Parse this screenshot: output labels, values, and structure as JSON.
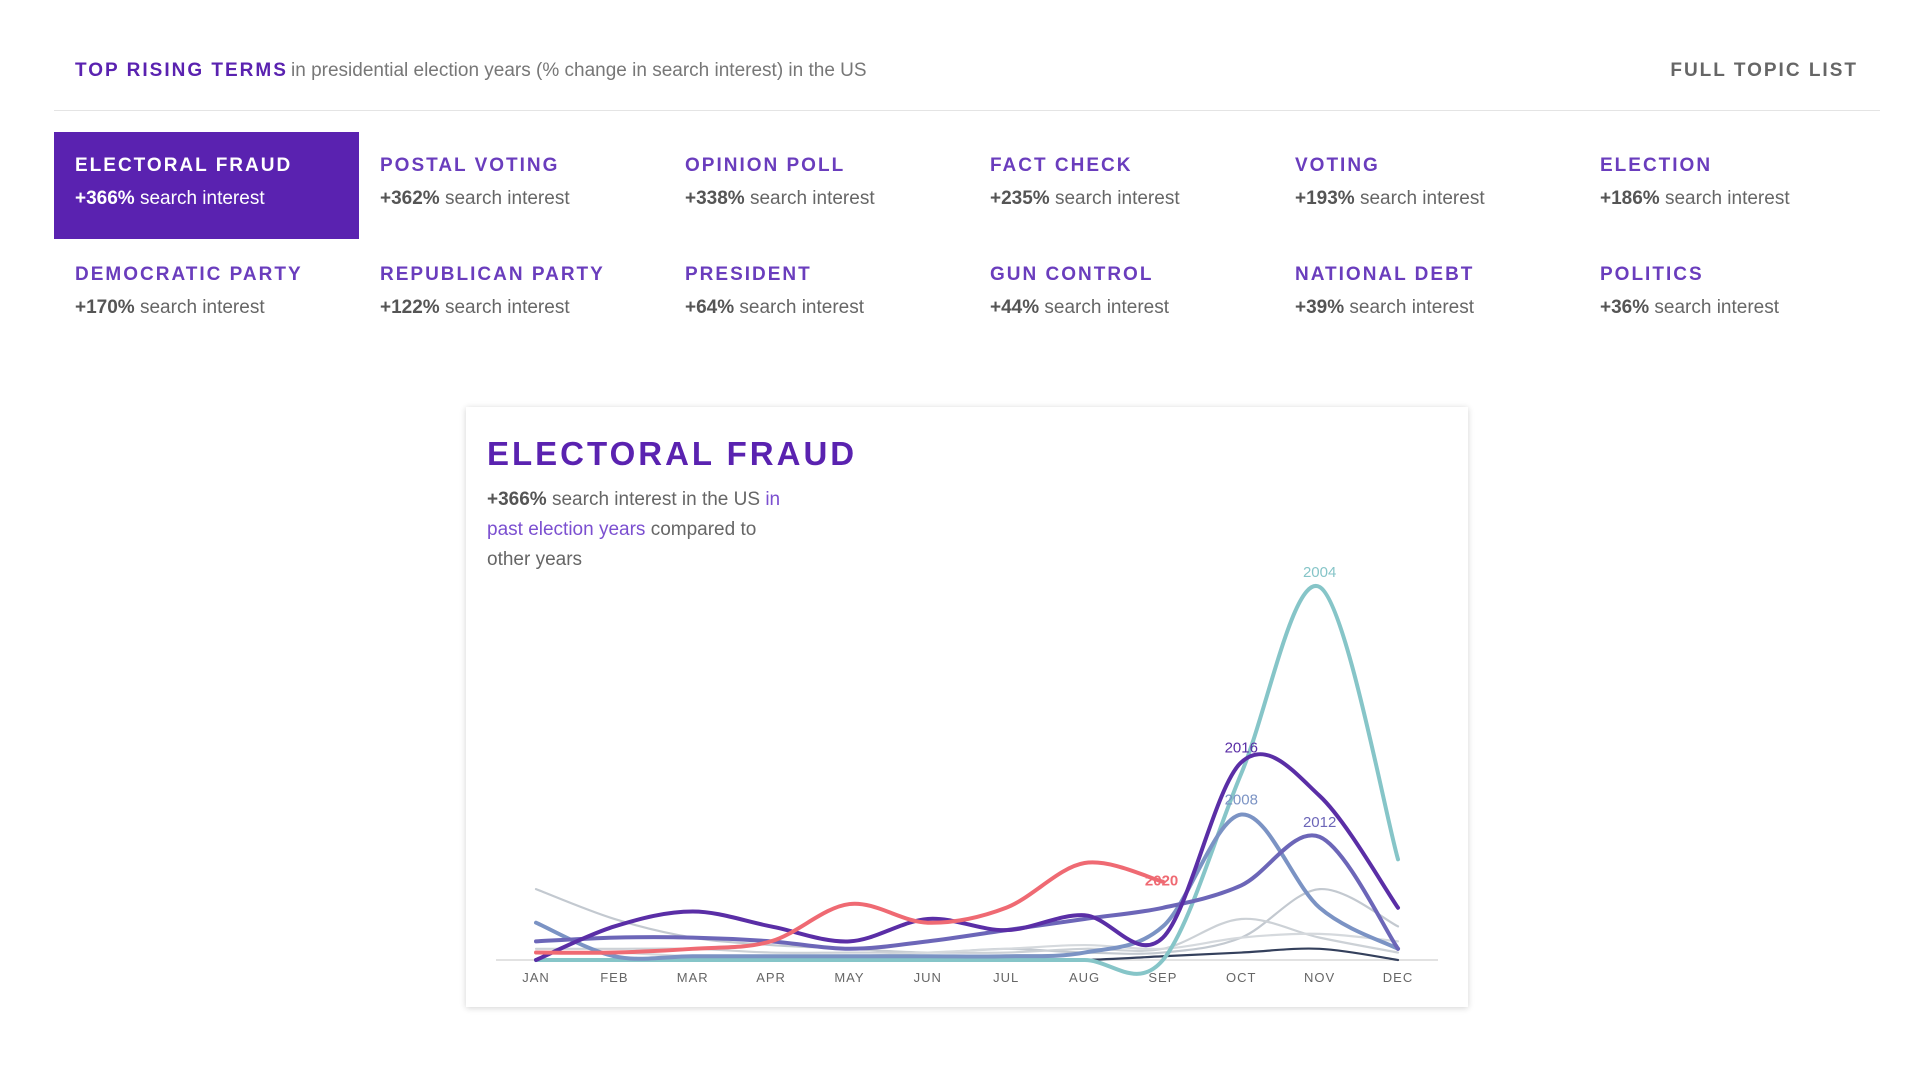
{
  "header": {
    "title": "TOP RISING TERMS",
    "subtitle": "in presidential election years (% change in search interest) in the US",
    "link": "FULL TOPIC LIST"
  },
  "topics": [
    {
      "name": "ELECTORAL FRAUD",
      "change": "+366%",
      "suffix": "search interest",
      "active": true
    },
    {
      "name": "POSTAL VOTING",
      "change": "+362%",
      "suffix": "search interest"
    },
    {
      "name": "OPINION POLL",
      "change": "+338%",
      "suffix": "search interest"
    },
    {
      "name": "FACT CHECK",
      "change": "+235%",
      "suffix": "search interest"
    },
    {
      "name": "VOTING",
      "change": "+193%",
      "suffix": "search interest"
    },
    {
      "name": "ELECTION",
      "change": "+186%",
      "suffix": "search interest"
    },
    {
      "name": "DEMOCRATIC PARTY",
      "change": "+170%",
      "suffix": "search interest"
    },
    {
      "name": "REPUBLICAN PARTY",
      "change": "+122%",
      "suffix": "search interest"
    },
    {
      "name": "PRESIDENT",
      "change": "+64%",
      "suffix": "search interest"
    },
    {
      "name": "GUN CONTROL",
      "change": "+44%",
      "suffix": "search interest"
    },
    {
      "name": "NATIONAL DEBT",
      "change": "+39%",
      "suffix": "search interest"
    },
    {
      "name": "POLITICS",
      "change": "+36%",
      "suffix": "search interest"
    }
  ],
  "chart_data": {
    "type": "line",
    "title": "ELECTORAL FRAUD",
    "subtitle": {
      "change": "+366%",
      "text": "search interest in the US",
      "link": "in past election years",
      "rest": "compared to other years"
    },
    "categories": [
      "JAN",
      "FEB",
      "MAR",
      "APR",
      "MAY",
      "JUN",
      "JUL",
      "AUG",
      "SEP",
      "OCT",
      "NOV",
      "DEC"
    ],
    "ylim": [
      0,
      100
    ],
    "series": [
      {
        "color": "#c3c9d0",
        "values": [
          19,
          11,
          6,
          4,
          3,
          2,
          3,
          2,
          2,
          6,
          19,
          9
        ]
      },
      {
        "color": "#ccd1d6",
        "values": [
          3,
          3,
          3,
          2,
          2,
          2,
          2,
          3,
          3,
          11,
          6,
          2
        ]
      },
      {
        "color": "#d5d9dd",
        "values": [
          2,
          2,
          1,
          1,
          1,
          2,
          3,
          4,
          3,
          6,
          7,
          5
        ]
      },
      {
        "color": "#34405c",
        "values": [
          0,
          0,
          0,
          0,
          0,
          0,
          0,
          0,
          1,
          2,
          3,
          0
        ]
      },
      {
        "name": "2004",
        "color": "#86c5c8",
        "values": [
          0,
          0,
          0,
          0,
          0,
          0,
          0,
          0,
          0,
          50,
          100,
          27
        ]
      },
      {
        "name": "2008",
        "color": "#7b93c4",
        "values": [
          10,
          1,
          1,
          1,
          1,
          1,
          1,
          2,
          9,
          39,
          14,
          3
        ]
      },
      {
        "name": "2012",
        "color": "#6c66b8",
        "values": [
          5,
          6,
          6,
          5,
          3,
          5,
          8,
          11,
          14,
          20,
          33,
          3
        ]
      },
      {
        "name": "2016",
        "color": "#5a2ea6",
        "values": [
          0,
          9,
          13,
          9,
          5,
          11,
          8,
          12,
          6,
          53,
          44,
          14
        ]
      },
      {
        "name": "2020",
        "color": "#ef6a73",
        "values": [
          2,
          2,
          3,
          5,
          15,
          10,
          14,
          26,
          21,
          null,
          null,
          null
        ]
      }
    ]
  }
}
